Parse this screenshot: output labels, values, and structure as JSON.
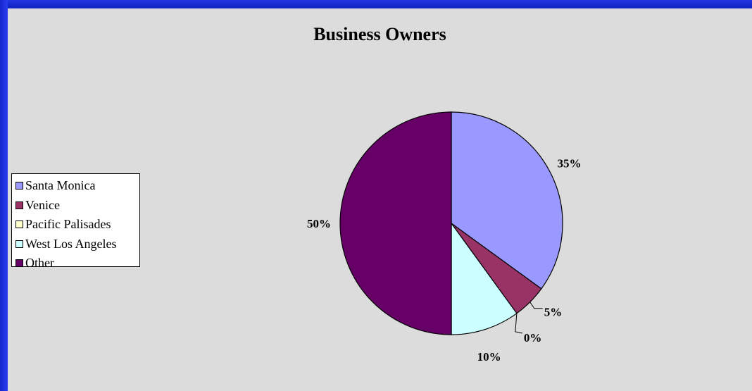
{
  "chart_data": {
    "type": "pie",
    "title": "Business Owners",
    "categories": [
      "Santa Monica",
      "Venice",
      "Pacific Palisades",
      "West Los Angeles",
      "Other"
    ],
    "values": [
      35,
      5,
      0,
      10,
      50
    ],
    "data_labels": [
      "35%",
      "5%",
      "0%",
      "10%",
      "50%"
    ],
    "colors": [
      "#9999ff",
      "#993366",
      "#ffffcc",
      "#ccffff",
      "#660066"
    ],
    "legend_position": "left",
    "start_angle_deg": 0,
    "direction": "clockwise"
  }
}
